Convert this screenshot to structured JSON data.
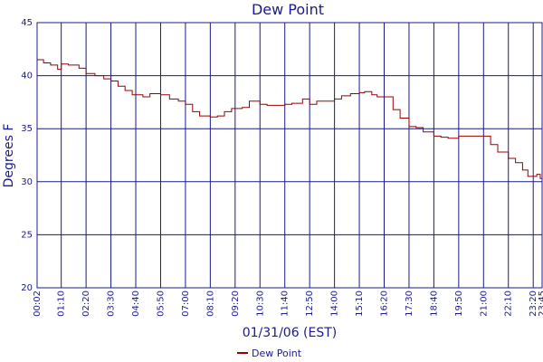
{
  "chart_data": {
    "type": "line",
    "title": "Dew Point",
    "xlabel": "01/31/06 (EST)",
    "ylabel": "Degrees F",
    "ylim": [
      20,
      45
    ],
    "y_ticks": [
      20,
      25,
      30,
      35,
      40,
      45
    ],
    "x_tick_labels": [
      "00:02",
      "01:10",
      "02:20",
      "03:30",
      "04:40",
      "05:50",
      "07:00",
      "08:10",
      "09:20",
      "10:30",
      "11:40",
      "12:50",
      "14:00",
      "15:10",
      "16:20",
      "17:30",
      "18:40",
      "19:50",
      "21:00",
      "22:10",
      "23:20",
      "23:45"
    ],
    "grid": true,
    "legend_position": "bottom-center",
    "series": [
      {
        "name": "Dew Point",
        "color": "#990000",
        "x": [
          "00:02",
          "00:20",
          "00:40",
          "01:00",
          "01:10",
          "01:30",
          "02:00",
          "02:20",
          "02:45",
          "03:10",
          "03:30",
          "03:50",
          "04:10",
          "04:30",
          "04:40",
          "05:00",
          "05:20",
          "05:50",
          "06:15",
          "06:40",
          "07:00",
          "07:20",
          "07:40",
          "08:10",
          "08:30",
          "08:50",
          "09:10",
          "09:20",
          "09:40",
          "10:00",
          "10:30",
          "10:50",
          "11:10",
          "11:40",
          "12:00",
          "12:30",
          "12:50",
          "13:10",
          "13:40",
          "14:00",
          "14:20",
          "14:45",
          "15:10",
          "15:25",
          "15:45",
          "16:00",
          "16:20",
          "16:45",
          "17:05",
          "17:30",
          "17:50",
          "18:10",
          "18:40",
          "19:00",
          "19:20",
          "19:50",
          "20:10",
          "20:30",
          "21:00",
          "21:20",
          "21:40",
          "22:10",
          "22:30",
          "22:50",
          "23:05",
          "23:20",
          "23:30",
          "23:40",
          "23:45"
        ],
        "values": [
          41.5,
          41.2,
          41.0,
          40.6,
          41.1,
          41.0,
          40.7,
          40.2,
          40.0,
          39.7,
          39.5,
          39.0,
          38.6,
          38.2,
          38.2,
          38.0,
          38.3,
          38.2,
          37.8,
          37.6,
          37.3,
          36.6,
          36.2,
          36.1,
          36.2,
          36.6,
          36.9,
          36.9,
          37.0,
          37.6,
          37.3,
          37.2,
          37.2,
          37.3,
          37.4,
          37.8,
          37.3,
          37.6,
          37.6,
          37.8,
          38.1,
          38.3,
          38.4,
          38.5,
          38.2,
          38.0,
          38.0,
          36.8,
          36.0,
          35.2,
          35.1,
          34.7,
          34.3,
          34.2,
          34.1,
          34.3,
          34.3,
          34.3,
          34.3,
          33.5,
          32.8,
          32.2,
          31.8,
          31.1,
          30.5,
          30.5,
          30.7,
          30.3,
          29.7
        ]
      }
    ]
  }
}
